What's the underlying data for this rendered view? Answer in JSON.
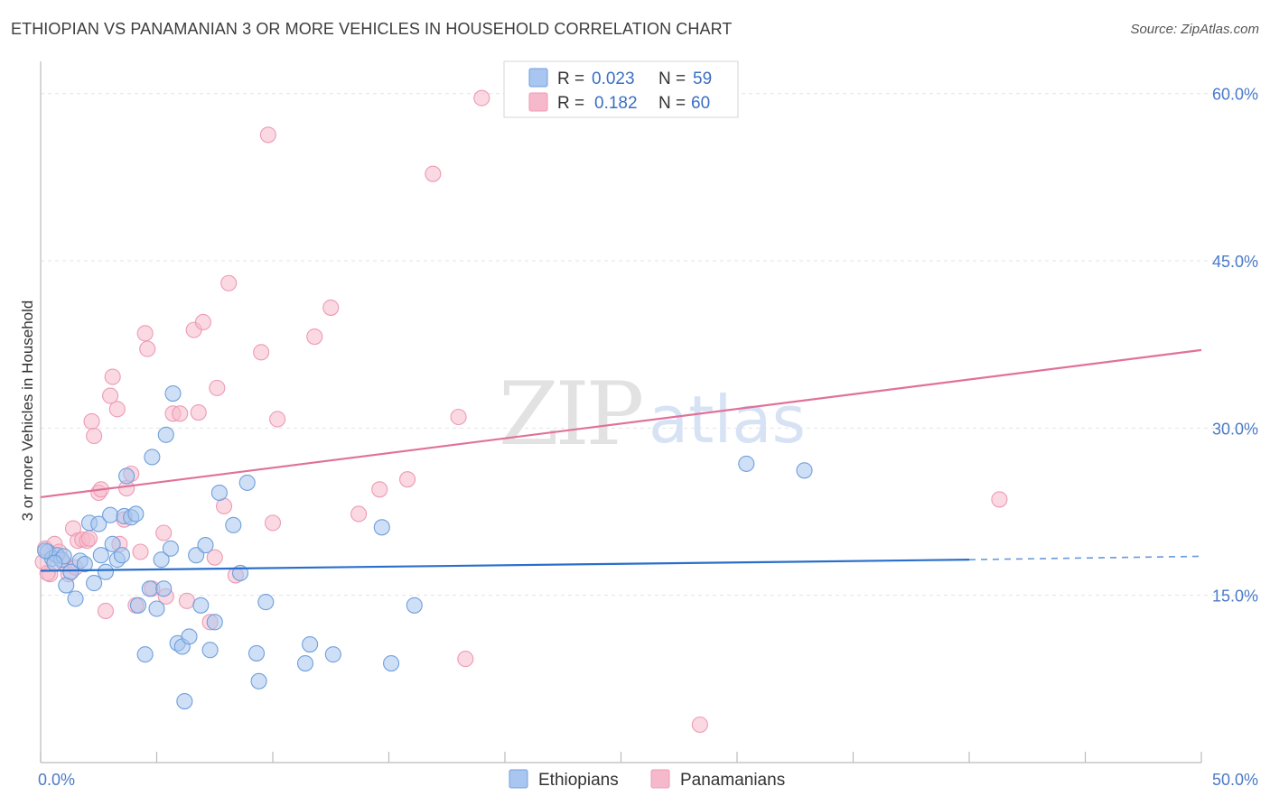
{
  "header": {
    "title": "ETHIOPIAN VS PANAMANIAN 3 OR MORE VEHICLES IN HOUSEHOLD CORRELATION CHART",
    "source": "Source: ZipAtlas.com"
  },
  "watermark": {
    "zip": "ZIP",
    "atlas": "atlas"
  },
  "legend": {
    "rows": [
      {
        "r_label": "R =",
        "r_value": "0.023",
        "n_label": "N =",
        "n_value": "59",
        "color": "#a8c6ef"
      },
      {
        "r_label": "R =",
        "r_value": "0.182",
        "n_label": "N =",
        "n_value": "60",
        "color": "#f6b9cb"
      }
    ]
  },
  "bottom_legend": [
    {
      "label": "Ethiopians",
      "color": "#a8c6ef"
    },
    {
      "label": "Panamanians",
      "color": "#f6b9cb"
    }
  ],
  "chart_data": {
    "type": "scatter",
    "title": "ETHIOPIAN VS PANAMANIAN 3 OR MORE VEHICLES IN HOUSEHOLD CORRELATION CHART",
    "xlabel": "",
    "ylabel": "3 or more Vehicles in Household",
    "xlim": [
      0,
      50
    ],
    "ylim": [
      0,
      62
    ],
    "x_tick_labels": [
      "0.0%",
      "50.0%"
    ],
    "y_ticks": [
      15,
      30,
      45,
      60
    ],
    "y_tick_labels": [
      "15.0%",
      "30.0%",
      "45.0%",
      "60.0%"
    ],
    "grid": true,
    "series": [
      {
        "name": "Ethiopians",
        "color": "#a8c6ef",
        "stroke": "#6f9fdc",
        "trend": {
          "x0": 0,
          "y0": 17.2,
          "x1": 40,
          "y1": 18.2,
          "dash_to_x": 50,
          "dash_to_y": 18.5,
          "color": "#2a6fcb"
        },
        "points": [
          [
            0.3,
            18.9
          ],
          [
            0.5,
            18.3
          ],
          [
            0.7,
            18.6
          ],
          [
            0.9,
            18.2
          ],
          [
            1.1,
            15.9
          ],
          [
            1.3,
            17.1
          ],
          [
            1.5,
            14.7
          ],
          [
            1.7,
            18.1
          ],
          [
            1.9,
            17.8
          ],
          [
            2.1,
            21.5
          ],
          [
            2.3,
            16.1
          ],
          [
            2.5,
            21.4
          ],
          [
            2.6,
            18.6
          ],
          [
            2.8,
            17.1
          ],
          [
            3.0,
            22.2
          ],
          [
            3.1,
            19.6
          ],
          [
            3.3,
            18.2
          ],
          [
            3.5,
            18.6
          ],
          [
            3.6,
            22.1
          ],
          [
            3.7,
            25.7
          ],
          [
            3.9,
            22.0
          ],
          [
            4.1,
            22.3
          ],
          [
            4.2,
            14.1
          ],
          [
            4.5,
            9.7
          ],
          [
            4.7,
            15.6
          ],
          [
            4.8,
            27.4
          ],
          [
            5.0,
            13.8
          ],
          [
            5.2,
            18.2
          ],
          [
            5.3,
            15.6
          ],
          [
            5.4,
            29.4
          ],
          [
            5.6,
            19.2
          ],
          [
            5.7,
            33.1
          ],
          [
            5.9,
            10.7
          ],
          [
            6.1,
            10.4
          ],
          [
            6.2,
            5.5
          ],
          [
            6.4,
            11.3
          ],
          [
            6.7,
            18.6
          ],
          [
            6.9,
            14.1
          ],
          [
            7.1,
            19.5
          ],
          [
            7.3,
            10.1
          ],
          [
            7.5,
            12.6
          ],
          [
            7.7,
            24.2
          ],
          [
            8.3,
            21.3
          ],
          [
            8.6,
            17.0
          ],
          [
            8.9,
            25.1
          ],
          [
            9.3,
            9.8
          ],
          [
            9.4,
            7.3
          ],
          [
            9.7,
            14.4
          ],
          [
            11.4,
            8.9
          ],
          [
            11.6,
            10.6
          ],
          [
            12.6,
            9.7
          ],
          [
            14.7,
            21.1
          ],
          [
            15.1,
            8.9
          ],
          [
            16.1,
            14.1
          ],
          [
            30.4,
            26.8
          ],
          [
            32.9,
            26.2
          ],
          [
            0.2,
            19.0
          ],
          [
            1.0,
            18.5
          ],
          [
            0.6,
            17.9
          ]
        ]
      },
      {
        "name": "Panamanians",
        "color": "#f6b9cb",
        "stroke": "#ee9ab4",
        "trend": {
          "x0": 0,
          "y0": 23.8,
          "x1": 50,
          "y1": 37.0,
          "color": "#e0719a"
        },
        "points": [
          [
            0.2,
            19.2
          ],
          [
            0.4,
            16.9
          ],
          [
            0.6,
            19.6
          ],
          [
            0.8,
            18.9
          ],
          [
            1.0,
            17.9
          ],
          [
            1.2,
            16.9
          ],
          [
            1.4,
            21.0
          ],
          [
            1.6,
            19.9
          ],
          [
            1.8,
            20.0
          ],
          [
            2.0,
            19.9
          ],
          [
            2.2,
            30.6
          ],
          [
            2.3,
            29.3
          ],
          [
            2.5,
            24.2
          ],
          [
            2.6,
            24.5
          ],
          [
            2.8,
            13.6
          ],
          [
            3.0,
            32.9
          ],
          [
            3.1,
            34.6
          ],
          [
            3.3,
            31.7
          ],
          [
            3.4,
            19.6
          ],
          [
            3.6,
            21.8
          ],
          [
            3.7,
            24.6
          ],
          [
            3.9,
            25.9
          ],
          [
            4.1,
            14.1
          ],
          [
            4.3,
            18.9
          ],
          [
            4.5,
            38.5
          ],
          [
            4.6,
            37.1
          ],
          [
            4.8,
            15.6
          ],
          [
            5.3,
            20.6
          ],
          [
            5.4,
            14.9
          ],
          [
            5.7,
            31.3
          ],
          [
            6.0,
            31.3
          ],
          [
            6.3,
            14.5
          ],
          [
            6.6,
            38.8
          ],
          [
            6.8,
            31.4
          ],
          [
            7.0,
            39.5
          ],
          [
            7.3,
            12.6
          ],
          [
            7.5,
            18.4
          ],
          [
            7.6,
            33.6
          ],
          [
            7.9,
            23.0
          ],
          [
            8.1,
            43.0
          ],
          [
            8.4,
            16.8
          ],
          [
            9.5,
            36.8
          ],
          [
            9.8,
            56.3
          ],
          [
            10.0,
            21.5
          ],
          [
            10.2,
            30.8
          ],
          [
            11.8,
            38.2
          ],
          [
            12.5,
            40.8
          ],
          [
            13.7,
            22.3
          ],
          [
            14.6,
            24.5
          ],
          [
            15.8,
            25.4
          ],
          [
            16.9,
            52.8
          ],
          [
            18.0,
            31.0
          ],
          [
            19.0,
            59.6
          ],
          [
            18.3,
            9.3
          ],
          [
            28.4,
            3.4
          ],
          [
            41.3,
            23.6
          ],
          [
            0.1,
            18.0
          ],
          [
            0.3,
            17.0
          ],
          [
            1.5,
            17.5
          ],
          [
            2.1,
            20.1
          ]
        ]
      }
    ]
  }
}
